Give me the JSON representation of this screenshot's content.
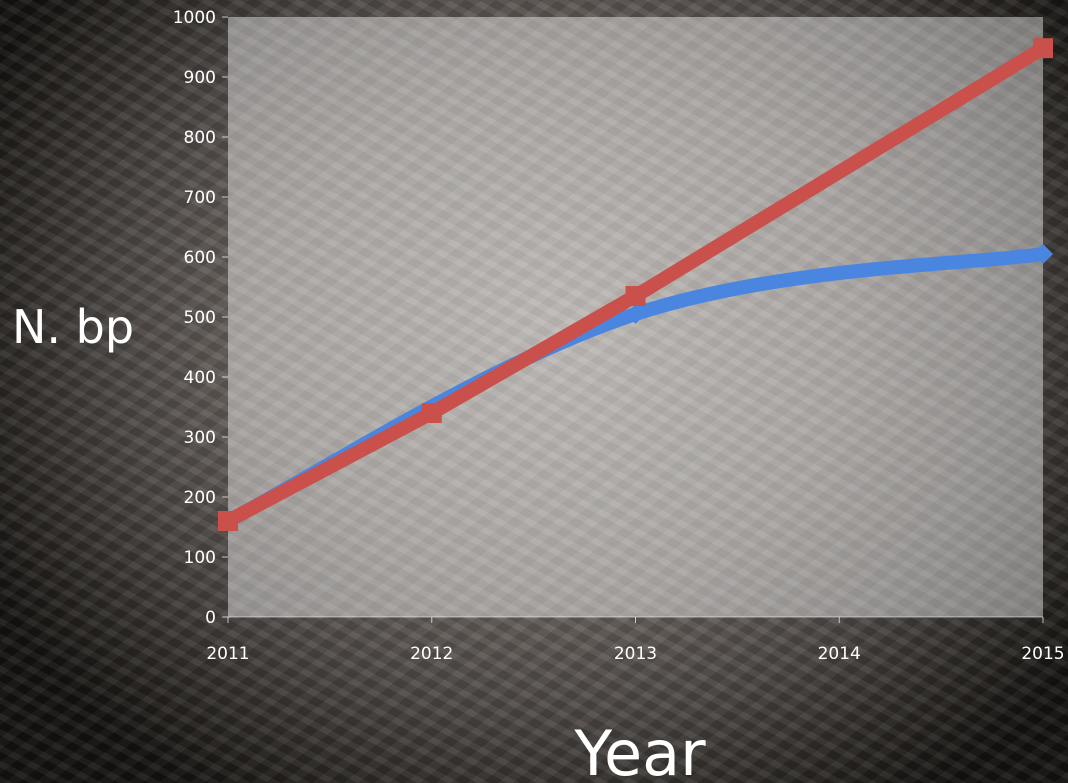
{
  "chart_data": {
    "type": "line",
    "title": "",
    "xlabel": "Year",
    "ylabel": "N. bp",
    "categories": [
      "2011",
      "2012",
      "2013",
      "2014",
      "2015"
    ],
    "x_ticks": [
      "2011",
      "2012",
      "2013",
      "2014",
      "2015"
    ],
    "y_ticks": [
      "0",
      "100",
      "200",
      "300",
      "400",
      "500",
      "600",
      "700",
      "800",
      "900",
      "1000"
    ],
    "ylim": [
      0,
      1000
    ],
    "grid": false,
    "legend": "none",
    "series": [
      {
        "color": "#4a86e0",
        "marker": "diamond",
        "points": [
          {
            "x": "2011",
            "y": 160
          },
          {
            "x": "2013",
            "y": 505
          },
          {
            "x": "2015",
            "y": 605
          }
        ]
      },
      {
        "color": "#c9504b",
        "marker": "square",
        "points": [
          {
            "x": "2011",
            "y": 160
          },
          {
            "x": "2012",
            "y": 340
          },
          {
            "x": "2013",
            "y": 535
          },
          {
            "x": "2015",
            "y": 948
          }
        ]
      }
    ]
  }
}
